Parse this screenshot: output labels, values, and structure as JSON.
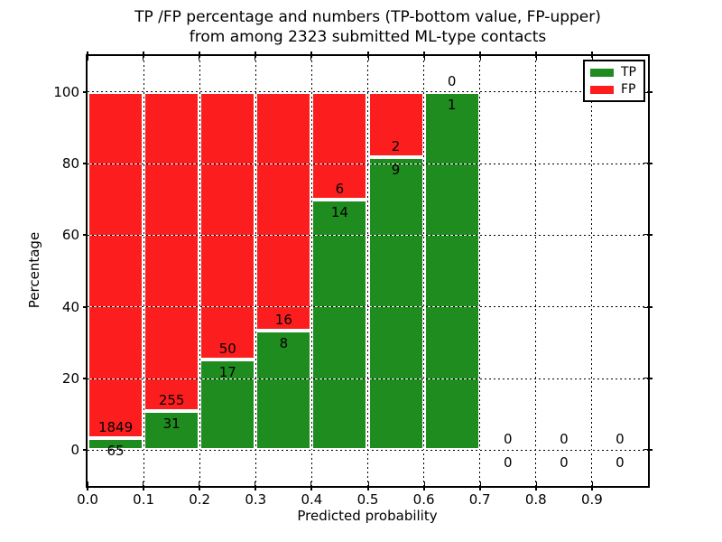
{
  "figure": {
    "title_line1": "TP /FP percentage and numbers (TP-bottom value, FP-upper)",
    "title_line2": "from among 2323 submitted ML-type contacts",
    "xlabel": "Predicted probability",
    "ylabel": "Percentage"
  },
  "legend": {
    "position": "upper right",
    "items": [
      {
        "label": "TP",
        "color": "#1e8c1e"
      },
      {
        "label": "FP",
        "color": "#fc1e1e"
      }
    ]
  },
  "colors": {
    "tp_green": "#1e8c1e",
    "fp_red": "#fc1e1e",
    "background": "#ffffff",
    "text": "#000000",
    "bar_edge": "#ffffff",
    "grid": "#000000"
  },
  "chart_data": {
    "type": "bar",
    "stacked": true,
    "normalized_to_percent": true,
    "title": "TP /FP percentage and numbers (TP-bottom value, FP-upper)\nfrom among 2323 submitted ML-type contacts",
    "xlabel": "Predicted probability",
    "ylabel": "Percentage",
    "total_contacts": 2323,
    "bin_edges": [
      0.0,
      0.1,
      0.2,
      0.3,
      0.4,
      0.5,
      0.6,
      0.7,
      0.8,
      0.9,
      1.0
    ],
    "series": [
      {
        "name": "TP",
        "color": "#1e8c1e",
        "counts": [
          65,
          31,
          17,
          8,
          14,
          9,
          1,
          0,
          0,
          0
        ]
      },
      {
        "name": "FP",
        "color": "#fc1e1e",
        "counts": [
          1849,
          255,
          50,
          16,
          6,
          2,
          0,
          0,
          0,
          0
        ]
      }
    ],
    "tp_percent_by_bin": [
      3.4,
      10.84,
      25.37,
      33.33,
      70.0,
      81.82,
      100.0,
      0,
      0,
      0
    ],
    "annotation_rule": "FP count above TP/FP boundary, TP count below boundary, at bin center",
    "xlim": [
      0.0,
      1.0
    ],
    "ylim": [
      -10,
      110
    ],
    "x_ticks": [
      0.0,
      0.1,
      0.2,
      0.3,
      0.4,
      0.5,
      0.6,
      0.7,
      0.8,
      0.9
    ],
    "x_tick_labels": [
      "0.0",
      "0.1",
      "0.2",
      "0.3",
      "0.4",
      "0.5",
      "0.6",
      "0.7",
      "0.8",
      "0.9"
    ],
    "y_ticks": [
      0,
      20,
      40,
      60,
      80,
      100
    ],
    "y_tick_labels": [
      "0",
      "20",
      "40",
      "60",
      "80",
      "100"
    ],
    "grid": {
      "visible": true,
      "style": "dotted"
    },
    "legend_position": "upper right"
  }
}
